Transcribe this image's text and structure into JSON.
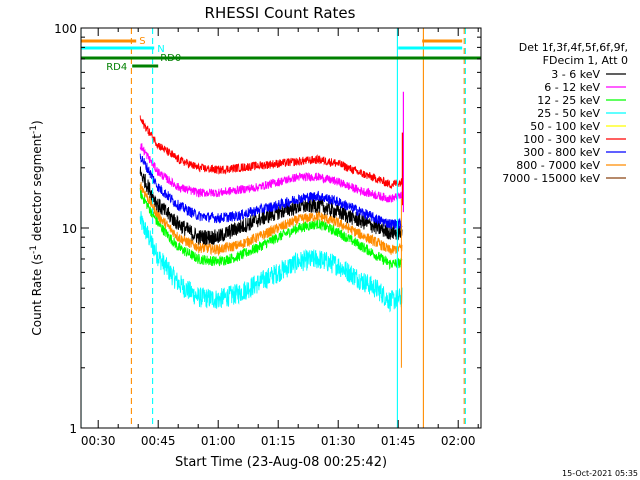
{
  "chart_data": {
    "type": "line",
    "title": "RHESSI Count Rates",
    "xlabel": "Start Time (23-Aug-08 00:25:42)",
    "ylabel": "Count Rate (s⁻¹ detector segment⁻¹)",
    "ylabel_parts": {
      "main": "Count Rate (s",
      "sup1": "-1",
      "mid": " detector segment",
      "sup2": "-1",
      "end": ")"
    },
    "yscale": "log",
    "ylim": [
      1,
      100
    ],
    "xlim_minutes": [
      25.7,
      125.7
    ],
    "x_ticks": [
      {
        "label": "00:30",
        "minutes": 30
      },
      {
        "label": "00:45",
        "minutes": 45
      },
      {
        "label": "01:00",
        "minutes": 60
      },
      {
        "label": "01:15",
        "minutes": 75
      },
      {
        "label": "01:30",
        "minutes": 90
      },
      {
        "label": "01:45",
        "minutes": 105
      },
      {
        "label": "02:00",
        "minutes": 120
      }
    ],
    "y_ticks": [
      {
        "label": "1",
        "value": 1
      },
      {
        "label": "10",
        "value": 10
      },
      {
        "label": "100",
        "value": 100
      }
    ],
    "legend": {
      "header": [
        "Det 1f,3f,4f,5f,6f,9f,",
        "FDecim 1, Att 0"
      ],
      "placement": "right"
    },
    "series": [
      {
        "name": "3 - 6 keV",
        "color": "#000000",
        "values": [
          [
            40.5,
            19
          ],
          [
            45,
            13
          ],
          [
            50,
            10.5
          ],
          [
            55,
            9
          ],
          [
            60,
            9
          ],
          [
            65,
            10
          ],
          [
            70,
            11
          ],
          [
            75,
            12
          ],
          [
            80,
            12.8
          ],
          [
            85,
            13
          ],
          [
            90,
            12
          ],
          [
            95,
            11
          ],
          [
            100,
            10
          ],
          [
            103,
            9.5
          ],
          [
            106,
            9.5
          ]
        ]
      },
      {
        "name": "6 - 12 keV",
        "color": "#ff00ff",
        "values": [
          [
            40.5,
            26
          ],
          [
            45,
            19
          ],
          [
            50,
            16
          ],
          [
            55,
            15
          ],
          [
            60,
            15
          ],
          [
            65,
            15.5
          ],
          [
            70,
            16
          ],
          [
            75,
            17
          ],
          [
            80,
            18
          ],
          [
            85,
            18
          ],
          [
            90,
            17
          ],
          [
            95,
            15.5
          ],
          [
            100,
            14.5
          ],
          [
            103,
            14
          ],
          [
            106,
            14.5
          ]
        ]
      },
      {
        "name": "12 - 25 keV",
        "color": "#00ff00",
        "values": [
          [
            40.5,
            15
          ],
          [
            45,
            10.5
          ],
          [
            50,
            8
          ],
          [
            55,
            7
          ],
          [
            60,
            6.8
          ],
          [
            65,
            7.2
          ],
          [
            70,
            8
          ],
          [
            75,
            9
          ],
          [
            80,
            10
          ],
          [
            85,
            10.5
          ],
          [
            90,
            9.5
          ],
          [
            95,
            8.3
          ],
          [
            100,
            7.2
          ],
          [
            103,
            6.6
          ],
          [
            106,
            6.7
          ]
        ]
      },
      {
        "name": "25 - 50 keV",
        "color": "#00ffff",
        "values": [
          [
            40.5,
            11
          ],
          [
            45,
            7.2
          ],
          [
            50,
            5.3
          ],
          [
            55,
            4.5
          ],
          [
            60,
            4.4
          ],
          [
            65,
            4.7
          ],
          [
            70,
            5.3
          ],
          [
            75,
            6
          ],
          [
            80,
            6.8
          ],
          [
            85,
            7
          ],
          [
            90,
            6.5
          ],
          [
            95,
            5.6
          ],
          [
            100,
            4.9
          ],
          [
            103,
            4.3
          ],
          [
            106,
            4.5
          ]
        ]
      },
      {
        "name": "50 - 100 keV",
        "color": "#ffff00",
        "values": []
      },
      {
        "name": "100 - 300 keV",
        "color": "#ff0000",
        "values": [
          [
            40.5,
            35
          ],
          [
            45,
            26
          ],
          [
            50,
            22
          ],
          [
            55,
            20
          ],
          [
            60,
            19.5
          ],
          [
            65,
            20
          ],
          [
            70,
            20.5
          ],
          [
            75,
            21
          ],
          [
            80,
            21.5
          ],
          [
            85,
            22
          ],
          [
            90,
            21
          ],
          [
            95,
            19
          ],
          [
            100,
            17.5
          ],
          [
            103,
            16.5
          ],
          [
            106,
            17
          ]
        ]
      },
      {
        "name": "300 - 800 keV",
        "color": "#0000ff",
        "values": [
          [
            40.5,
            23
          ],
          [
            45,
            16
          ],
          [
            50,
            13
          ],
          [
            55,
            11.5
          ],
          [
            60,
            11.2
          ],
          [
            65,
            11.5
          ],
          [
            70,
            12.3
          ],
          [
            75,
            13
          ],
          [
            80,
            14
          ],
          [
            85,
            14.5
          ],
          [
            90,
            13.5
          ],
          [
            95,
            12.2
          ],
          [
            100,
            11
          ],
          [
            103,
            10.5
          ],
          [
            106,
            10.5
          ]
        ]
      },
      {
        "name": "800 - 7000 keV",
        "color": "#ff8c00",
        "values": [
          [
            40.5,
            16.5
          ],
          [
            45,
            11.5
          ],
          [
            50,
            9
          ],
          [
            55,
            8
          ],
          [
            60,
            7.8
          ],
          [
            65,
            8.2
          ],
          [
            70,
            9
          ],
          [
            75,
            10
          ],
          [
            80,
            11
          ],
          [
            85,
            11.5
          ],
          [
            90,
            10.6
          ],
          [
            95,
            9.4
          ],
          [
            100,
            8.4
          ],
          [
            103,
            7.7
          ],
          [
            106,
            8
          ]
        ]
      },
      {
        "name": "7000 - 15000 keV",
        "color": "#8b4513",
        "values": []
      }
    ],
    "attenuator_markers": [
      {
        "label": "S",
        "color": "#ff8c00",
        "segments_minutes": [
          [
            25.7,
            39.5
          ],
          [
            111,
            121
          ]
        ]
      },
      {
        "label": "N",
        "color": "#00ffff",
        "segments_minutes": [
          [
            25.7,
            44
          ],
          [
            105,
            121
          ]
        ]
      },
      {
        "label": "RD0",
        "color": "#008000",
        "segments_minutes": [
          [
            25.7,
            125.7
          ]
        ]
      },
      {
        "label": "RD4",
        "color": "#008000",
        "segments_minutes": [
          [
            38.5,
            45
          ]
        ]
      }
    ],
    "vertical_lines": [
      {
        "minutes": 25.7,
        "color": "#00ffff",
        "style": "solid"
      },
      {
        "minutes": 38.3,
        "color": "#ff8c00",
        "style": "dashed"
      },
      {
        "minutes": 43.6,
        "color": "#00ffff",
        "style": "dashed"
      },
      {
        "minutes": 104.8,
        "color": "#00ffff",
        "style": "solid"
      },
      {
        "minutes": 111.3,
        "color": "#ff8c00",
        "style": "solid"
      },
      {
        "minutes": 121.5,
        "color": "#ff8c00",
        "style": "dashed"
      },
      {
        "minutes": 121.8,
        "color": "#00ffff",
        "style": "dashed"
      }
    ],
    "footer_text": "15-Oct-2021 05:35"
  }
}
